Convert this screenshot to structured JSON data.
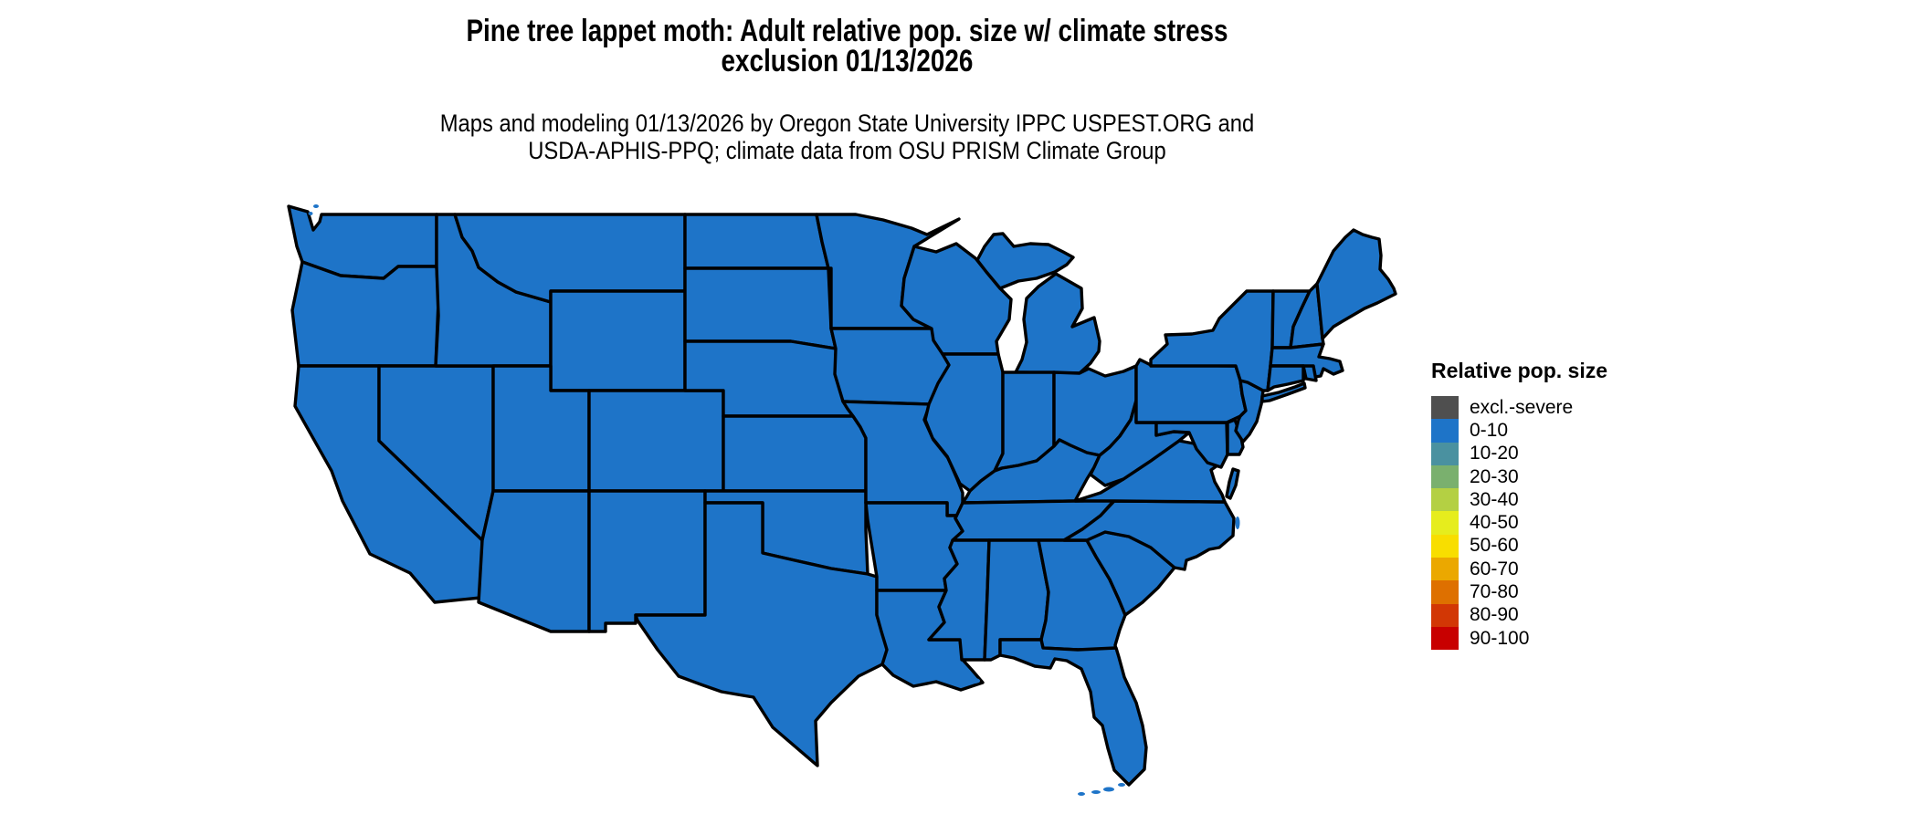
{
  "title": {
    "line1": "Pine tree lappet moth: Adult relative pop. size w/ climate stress",
    "line2": "exclusion 01/13/2026"
  },
  "subtitle": {
    "line1": "Maps and modeling 01/13/2026 by Oregon State University IPPC USPEST.ORG and",
    "line2": "USDA-APHIS-PPQ; climate data from OSU PRISM Climate Group"
  },
  "legend": {
    "title": "Relative pop. size",
    "items": [
      {
        "label": "excl.-severe",
        "color": "#4f4f4f"
      },
      {
        "label": "0-10",
        "color": "#1e74c8"
      },
      {
        "label": "10-20",
        "color": "#4a91a0"
      },
      {
        "label": "20-30",
        "color": "#7ab06e"
      },
      {
        "label": "30-40",
        "color": "#b4d043"
      },
      {
        "label": "40-50",
        "color": "#e6ed1d"
      },
      {
        "label": "50-60",
        "color": "#f8de00"
      },
      {
        "label": "60-70",
        "color": "#eba800"
      },
      {
        "label": "70-80",
        "color": "#de7000"
      },
      {
        "label": "80-90",
        "color": "#d23705"
      },
      {
        "label": "90-100",
        "color": "#c80000"
      }
    ]
  },
  "map": {
    "region": "Contiguous United States choropleth",
    "all_states_category": "0-10",
    "border_color": "#000000",
    "background_color": "#ffffff"
  }
}
